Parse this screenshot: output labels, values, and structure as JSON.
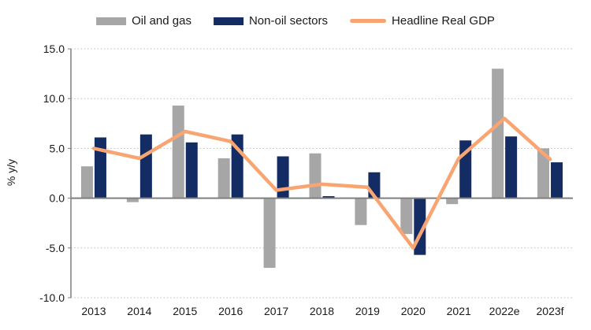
{
  "chart_data": {
    "type": "bar+line combo",
    "title": "",
    "categories": [
      "2013",
      "2014",
      "2015",
      "2016",
      "2017",
      "2018",
      "2019",
      "2020",
      "2021",
      "2022e",
      "2023f"
    ],
    "series": [
      {
        "name": "Oil and gas",
        "type": "bar",
        "color": "#A6A6A6",
        "values": [
          3.2,
          -0.4,
          9.3,
          4.0,
          -7.0,
          4.5,
          -2.7,
          -3.6,
          -0.6,
          13.0,
          5.0
        ]
      },
      {
        "name": "Non-oil sectors",
        "type": "bar",
        "color": "#132C64",
        "values": [
          6.1,
          6.4,
          5.6,
          6.4,
          4.2,
          0.2,
          2.6,
          -5.7,
          5.8,
          6.2,
          3.6
        ]
      },
      {
        "name": "Headline Real GDP",
        "type": "line",
        "color": "#F8A572",
        "values": [
          5.0,
          4.0,
          6.7,
          5.7,
          0.8,
          1.4,
          1.1,
          -5.0,
          4.0,
          8.0,
          3.9
        ]
      }
    ],
    "xlabel": "",
    "ylabel": "% y/y",
    "ylim": [
      -10,
      15
    ],
    "yticks": [
      15,
      10,
      5,
      0,
      -5,
      -10
    ],
    "ytick_labels": [
      "15.0",
      "10.0",
      "5.0",
      "0.0",
      "-5.0",
      "-10.0"
    ],
    "grid": "horizontal dotted",
    "legend_position": "top"
  },
  "colors": {
    "axis_line": "#7F7F7F",
    "gridline": "#BFBFBF",
    "text": "#1a1a1a",
    "background": "#ffffff"
  }
}
